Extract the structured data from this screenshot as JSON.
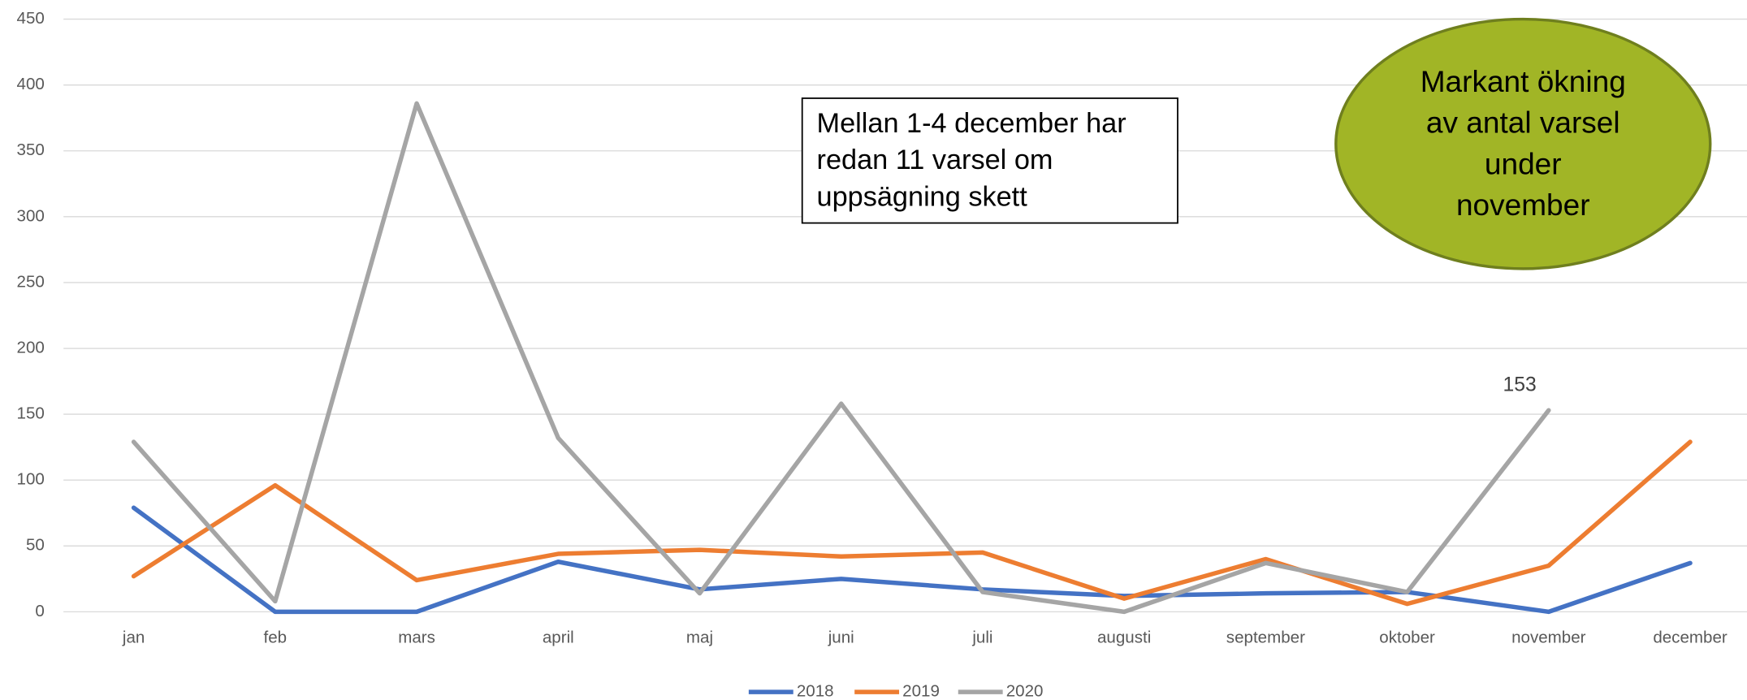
{
  "chart_data": {
    "type": "line",
    "categories": [
      "jan",
      "feb",
      "mars",
      "april",
      "maj",
      "juni",
      "juli",
      "augusti",
      "september",
      "oktober",
      "november",
      "december"
    ],
    "series": [
      {
        "name": "2018",
        "color": "#4472c4",
        "values": [
          79,
          0,
          0,
          38,
          17,
          25,
          17,
          12,
          14,
          15,
          0,
          37
        ]
      },
      {
        "name": "2019",
        "color": "#ed7d31",
        "values": [
          27,
          96,
          24,
          44,
          47,
          42,
          45,
          10,
          40,
          6,
          35,
          129
        ]
      },
      {
        "name": "2020",
        "color": "#a5a5a5",
        "values": [
          129,
          8,
          386,
          132,
          14,
          158,
          15,
          0,
          37,
          15,
          153,
          null
        ]
      }
    ],
    "ylim": [
      0,
      450
    ],
    "yticks": [
      0,
      50,
      100,
      150,
      200,
      250,
      300,
      350,
      400,
      450
    ],
    "grid": true,
    "legend": "bottom",
    "annotations": [
      {
        "lines": [
          "Mellan 1-4 december har",
          "redan 11 varsel om",
          "uppsägning skett"
        ]
      },
      {
        "lines": [
          "Markant ökning",
          "av antal varsel",
          "under",
          "november"
        ],
        "color": "#a1b526"
      }
    ]
  }
}
